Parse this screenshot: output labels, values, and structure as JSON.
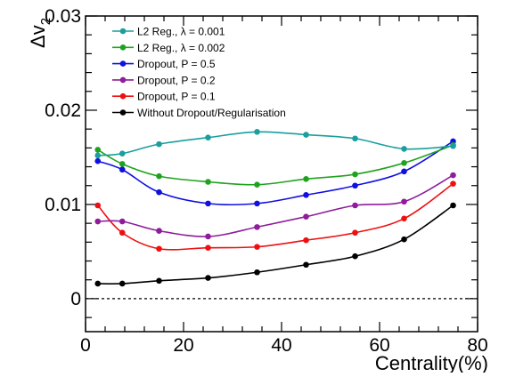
{
  "chart_data": {
    "type": "line",
    "title": "",
    "xlabel": "Centrality(%)",
    "ylabel": "Δv",
    "ylabel_sub": "2",
    "xlim": [
      0,
      80
    ],
    "ylim": [
      -0.0035,
      0.03
    ],
    "xticks": [
      0,
      20,
      40,
      60,
      80
    ],
    "xtick_labels": [
      "0",
      "20",
      "40",
      "60",
      "80"
    ],
    "yticks": [
      0,
      0.01,
      0.02,
      0.03
    ],
    "ytick_labels": [
      "0",
      "0.01",
      "0.02",
      "0.03"
    ],
    "reference_line_y": 0,
    "grid": false,
    "legend_position": "top-left",
    "x": [
      2.5,
      7.5,
      15,
      25,
      35,
      45,
      55,
      65,
      75
    ],
    "series": [
      {
        "name": "L2 Reg., λ = 0.001",
        "color": "#1a9e9e",
        "values": [
          0.0152,
          0.0154,
          0.0164,
          0.0171,
          0.0177,
          0.0174,
          0.017,
          0.0159,
          0.0162
        ]
      },
      {
        "name": "L2 Reg., λ = 0.002",
        "color": "#1fa31f",
        "values": [
          0.0158,
          0.0143,
          0.013,
          0.0124,
          0.0121,
          0.0127,
          0.0132,
          0.0144,
          0.0163
        ]
      },
      {
        "name": "Dropout, P = 0.5",
        "color": "#1010e0",
        "values": [
          0.0146,
          0.0137,
          0.0113,
          0.0101,
          0.0101,
          0.011,
          0.012,
          0.0135,
          0.0167
        ]
      },
      {
        "name": "Dropout, P = 0.2",
        "color": "#8e1c9c",
        "values": [
          0.0082,
          0.0082,
          0.0072,
          0.0066,
          0.0076,
          0.0087,
          0.0099,
          0.0103,
          0.0131
        ]
      },
      {
        "name": "Dropout, P = 0.1",
        "color": "#ee1010",
        "values": [
          0.0099,
          0.007,
          0.0053,
          0.0054,
          0.0055,
          0.0062,
          0.007,
          0.0085,
          0.0122
        ]
      },
      {
        "name": "Without Dropout/Regularisation",
        "color": "#000000",
        "values": [
          0.0016,
          0.0016,
          0.0019,
          0.0022,
          0.0028,
          0.0036,
          0.0045,
          0.0063,
          0.0099
        ]
      }
    ]
  }
}
